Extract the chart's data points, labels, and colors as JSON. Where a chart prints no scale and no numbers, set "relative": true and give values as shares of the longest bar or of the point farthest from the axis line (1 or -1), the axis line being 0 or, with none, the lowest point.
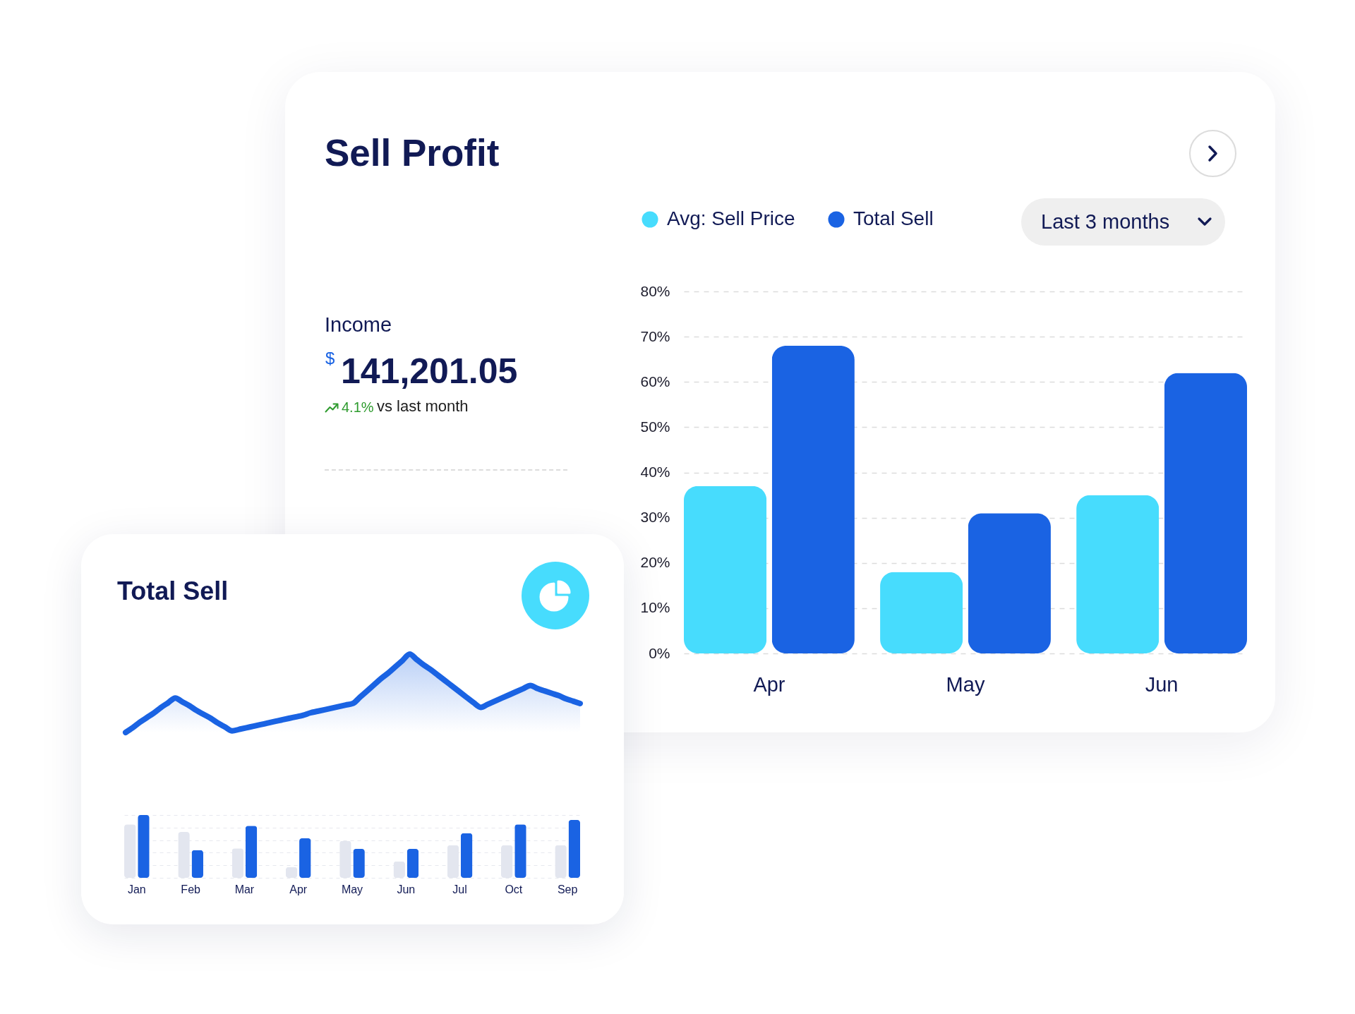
{
  "chart_data": [
    {
      "type": "bar",
      "title": "Sell Profit",
      "categories": [
        "Apr",
        "May",
        "Jun"
      ],
      "series": [
        {
          "name": "Avg: Sell Price",
          "color": "#47dcfd",
          "values": [
            37,
            18,
            35
          ]
        },
        {
          "name": "Total Sell",
          "color": "#1a63e3",
          "values": [
            68,
            31,
            62
          ]
        }
      ],
      "ylim": [
        0,
        80
      ],
      "yticks": [
        {
          "value": 0,
          "label": "0%"
        },
        {
          "value": 10,
          "label": "10%"
        },
        {
          "value": 20,
          "label": "20%"
        },
        {
          "value": 30,
          "label": "30%"
        },
        {
          "value": 40,
          "label": "40%"
        },
        {
          "value": 50,
          "label": "50%"
        },
        {
          "value": 60,
          "label": "60%"
        },
        {
          "value": 70,
          "label": "70%"
        },
        {
          "value": 80,
          "label": "80%"
        }
      ],
      "grid": "y",
      "legend": "top",
      "annotations": [
        "Last 3 months"
      ]
    },
    {
      "type": "other",
      "title": "Income",
      "annotations": [
        "$",
        "141,201.05",
        "4.1%",
        "vs last month"
      ]
    },
    {
      "type": "area",
      "title": "Total Sell",
      "categories": [
        null,
        null,
        null,
        null,
        null,
        null,
        null,
        null,
        null,
        null,
        null,
        null,
        null,
        null,
        null,
        null,
        null,
        null,
        null,
        null,
        null,
        null,
        null,
        null,
        null,
        null,
        null,
        null,
        null,
        null,
        null,
        null,
        null,
        null,
        null,
        null,
        null,
        null,
        null,
        null,
        null,
        null,
        null,
        null,
        null,
        null,
        null,
        null,
        null,
        null,
        null,
        null,
        null,
        null,
        null,
        null,
        null,
        null,
        null,
        null,
        null,
        null,
        null,
        null,
        null
      ],
      "series": [
        {
          "color": "#1a63e3",
          "values": [
            0,
            0.06,
            0.13,
            0.19,
            0.25,
            0.32,
            0.38,
            0.44,
            0.39,
            0.34,
            0.28,
            0.23,
            0.18,
            0.12,
            0.07,
            0.02,
            0.04,
            0.06,
            0.08,
            0.1,
            0.12,
            0.14,
            0.16,
            0.18,
            0.2,
            0.22,
            0.25,
            0.27,
            0.29,
            0.31,
            0.33,
            0.35,
            0.37,
            0.45,
            0.53,
            0.61,
            0.69,
            0.76,
            0.84,
            0.92,
            1,
            0.93,
            0.86,
            0.8,
            0.73,
            0.66,
            0.59,
            0.52,
            0.45,
            0.38,
            0.32,
            0.36,
            0.4,
            0.44,
            0.48,
            0.52,
            0.56,
            0.6,
            0.56,
            0.53,
            0.5,
            0.47,
            0.43,
            0.4,
            0.37
          ]
        }
      ],
      "relative": true
    },
    {
      "type": "bar",
      "categories": [
        "Jan",
        "Feb",
        "Mar",
        "Apr",
        "May",
        "Jun",
        "Jul",
        "Oct",
        "Sep"
      ],
      "series": [
        {
          "color": "#e3e6ef",
          "values": [
            0.85,
            0.73,
            0.47,
            0.17,
            0.59,
            0.26,
            0.52,
            0.52,
            0.52
          ]
        },
        {
          "color": "#1a63e3",
          "values": [
            1,
            0.44,
            0.83,
            0.63,
            0.46,
            0.46,
            0.71,
            0.85,
            0.92
          ]
        }
      ],
      "relative": true,
      "grid": "y"
    }
  ]
}
